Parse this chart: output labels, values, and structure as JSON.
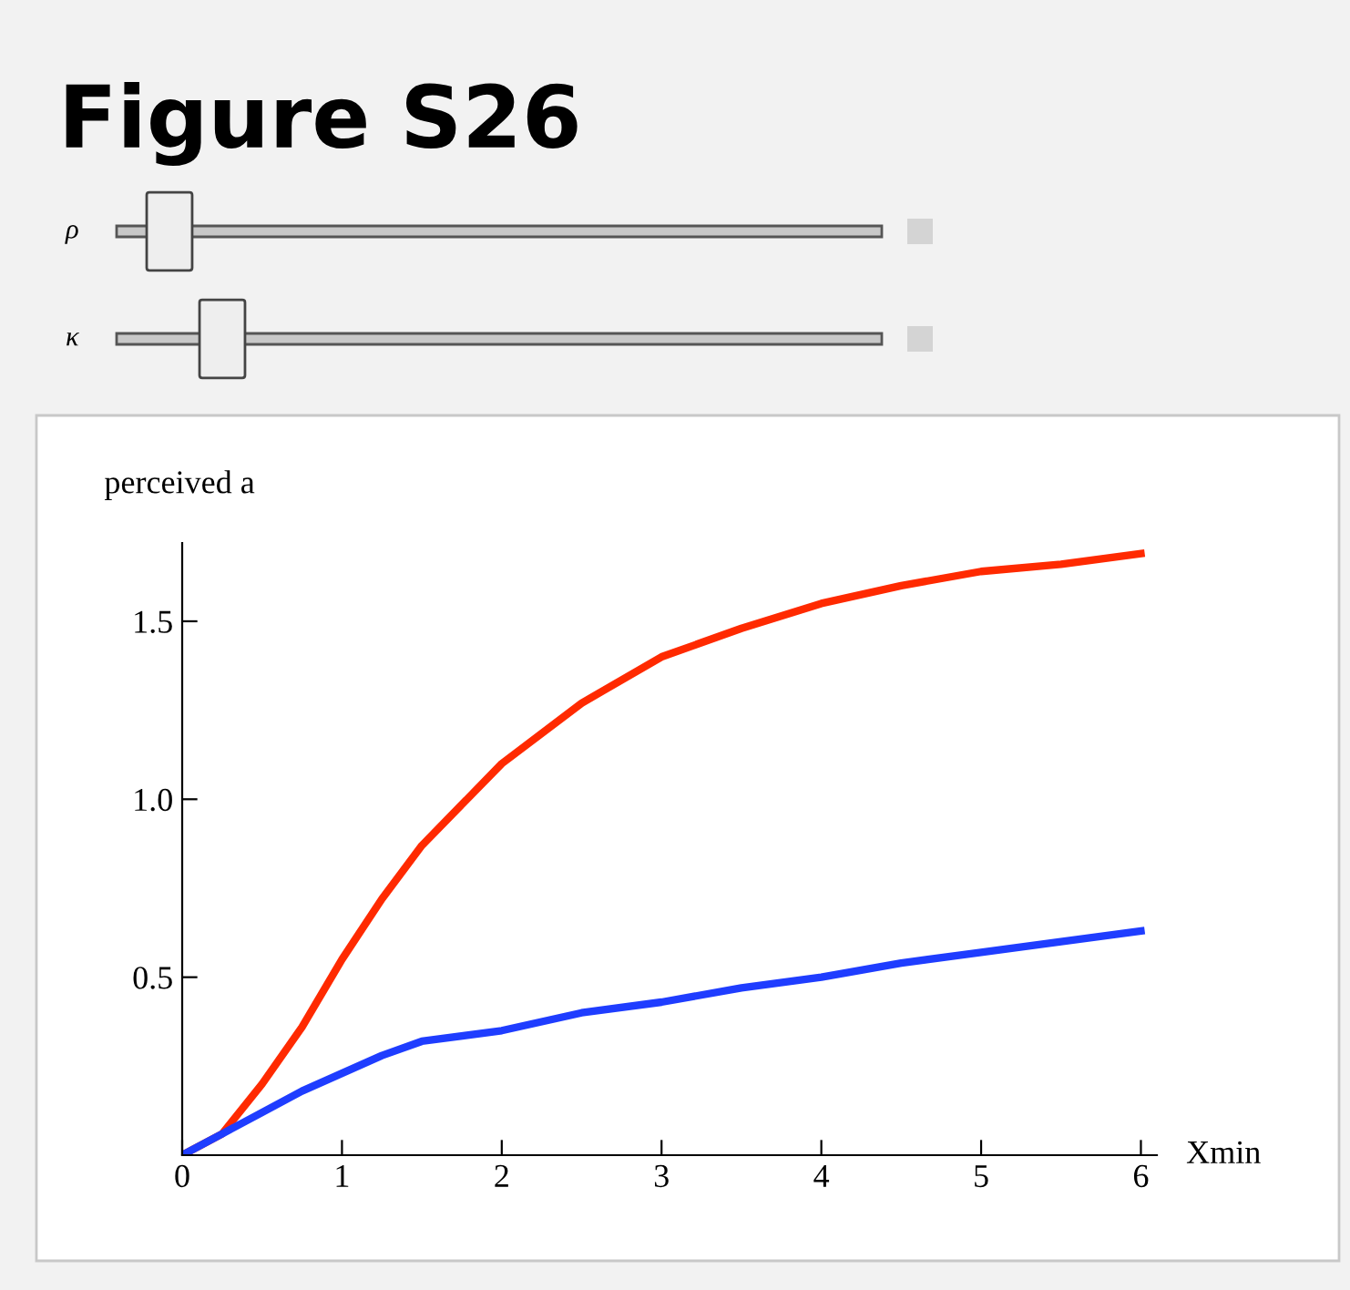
{
  "chart_data": {
    "type": "line",
    "title": "Figure S26",
    "xlabel": "Xmin",
    "ylabel": "perceived a",
    "annotations": [
      "ρ",
      "κ"
    ],
    "x": [
      0,
      0.25,
      0.5,
      0.75,
      1,
      1.25,
      1.5,
      2,
      2.5,
      3,
      3.5,
      4,
      4.5,
      5,
      5.5,
      6
    ],
    "series": [
      {
        "color": "#ff2a00",
        "values": [
          0,
          0.06,
          0.2,
          0.36,
          0.55,
          0.72,
          0.87,
          1.1,
          1.27,
          1.4,
          1.48,
          1.55,
          1.6,
          1.64,
          1.66,
          1.69
        ]
      },
      {
        "color": "#1f3dff",
        "values": [
          0,
          0.06,
          0.12,
          0.18,
          0.23,
          0.28,
          0.32,
          0.35,
          0.4,
          0.43,
          0.47,
          0.5,
          0.54,
          0.57,
          0.6,
          0.63
        ]
      }
    ],
    "xlim": [
      0,
      6.1
    ],
    "ylim": [
      0,
      1.72
    ],
    "xticks": [
      0,
      1,
      2,
      3,
      4,
      5,
      6
    ],
    "yticks": [
      {
        "value": 0.5,
        "label": "0.5"
      },
      {
        "value": 1.0,
        "label": "1.0"
      },
      {
        "value": 1.5,
        "label": "1.5"
      }
    ],
    "line_style": "solid"
  }
}
